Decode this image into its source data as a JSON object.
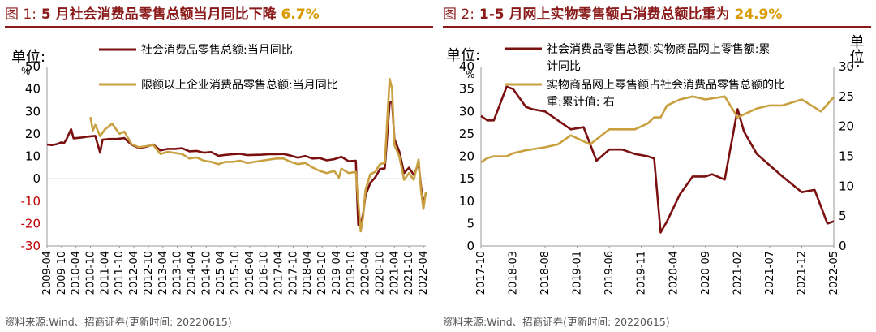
{
  "charts": [
    {
      "fig": "图 1:",
      "headline": "5 月社会消费品零售总额当月同比下降",
      "highlight": "6.7%",
      "unit_label": "单位:",
      "unit_pct": "%",
      "source": "资料来源:Wind、招商证券(更新时间: 20220615)"
    },
    {
      "fig": "图 2:",
      "headline": "1-5 月网上实物零售额占消费总额比重为",
      "highlight": "24.9%",
      "unit_label": "单位:",
      "unit_pct": "%",
      "unit_label_right": "单位:",
      "source": "资料来源:Wind、招商证券(更新时间: 20220615)"
    }
  ],
  "colors": {
    "title": "#8b1a1a",
    "series_dark": "#7b1010",
    "series_gold": "#c8a040",
    "highlight": "#d99a00",
    "negative": "#c00000"
  },
  "chart_data": [
    {
      "type": "line",
      "title": "5 月社会消费品零售总额当月同比下降 6.7%",
      "ylabel": "单位: %",
      "ylim": [
        -30,
        50
      ],
      "yticks": [
        -30,
        -20,
        -10,
        0,
        10,
        20,
        30,
        40,
        50
      ],
      "xticks": [
        "2009-04",
        "2009-10",
        "2010-04",
        "2010-10",
        "2011-04",
        "2011-10",
        "2012-04",
        "2012-10",
        "2013-04",
        "2013-10",
        "2014-04",
        "2014-10",
        "2015-04",
        "2015-10",
        "2016-04",
        "2016-10",
        "2017-04",
        "2017-10",
        "2018-04",
        "2018-10",
        "2019-04",
        "2019-10",
        "2020-04",
        "2020-10",
        "2021-04",
        "2021-10",
        "2022-04"
      ],
      "x_start": "2009-04",
      "x_end": "2022-05",
      "legend": "top",
      "series": [
        {
          "name": "社会消费品零售总额:当月同比",
          "color": "#7b1010",
          "points": [
            [
              "2009-04",
              15.2
            ],
            [
              "2009-06",
              15.0
            ],
            [
              "2009-08",
              15.4
            ],
            [
              "2009-10",
              16.2
            ],
            [
              "2009-11",
              15.8
            ],
            [
              "2009-12",
              17.5
            ],
            [
              "2010-02",
              22.1
            ],
            [
              "2010-03",
              18.0
            ],
            [
              "2010-06",
              18.3
            ],
            [
              "2010-09",
              18.8
            ],
            [
              "2010-12",
              19.1
            ],
            [
              "2011-02",
              11.6
            ],
            [
              "2011-03",
              17.4
            ],
            [
              "2011-06",
              17.7
            ],
            [
              "2011-09",
              17.7
            ],
            [
              "2011-12",
              18.1
            ],
            [
              "2012-03",
              15.2
            ],
            [
              "2012-06",
              13.7
            ],
            [
              "2012-09",
              14.2
            ],
            [
              "2012-12",
              15.2
            ],
            [
              "2013-03",
              12.6
            ],
            [
              "2013-06",
              13.3
            ],
            [
              "2013-09",
              13.3
            ],
            [
              "2013-12",
              13.6
            ],
            [
              "2014-03",
              12.2
            ],
            [
              "2014-06",
              12.4
            ],
            [
              "2014-09",
              11.6
            ],
            [
              "2014-12",
              11.9
            ],
            [
              "2015-03",
              10.2
            ],
            [
              "2015-06",
              10.6
            ],
            [
              "2015-09",
              10.9
            ],
            [
              "2015-12",
              11.1
            ],
            [
              "2016-03",
              10.5
            ],
            [
              "2016-06",
              10.6
            ],
            [
              "2016-09",
              10.7
            ],
            [
              "2016-12",
              10.9
            ],
            [
              "2017-03",
              10.9
            ],
            [
              "2017-06",
              11.0
            ],
            [
              "2017-09",
              10.3
            ],
            [
              "2017-12",
              9.4
            ],
            [
              "2018-03",
              10.1
            ],
            [
              "2018-06",
              9.0
            ],
            [
              "2018-09",
              9.2
            ],
            [
              "2018-12",
              8.2
            ],
            [
              "2019-03",
              8.7
            ],
            [
              "2019-06",
              9.8
            ],
            [
              "2019-09",
              7.8
            ],
            [
              "2019-12",
              8.0
            ],
            [
              "2020-01",
              -20.5
            ],
            [
              "2020-02",
              -20.5
            ],
            [
              "2020-03",
              -15.8
            ],
            [
              "2020-04",
              -7.5
            ],
            [
              "2020-06",
              -1.8
            ],
            [
              "2020-08",
              0.5
            ],
            [
              "2020-10",
              4.3
            ],
            [
              "2020-12",
              4.6
            ],
            [
              "2021-02",
              33.8
            ],
            [
              "2021-03",
              34.2
            ],
            [
              "2021-04",
              17.7
            ],
            [
              "2021-06",
              12.1
            ],
            [
              "2021-08",
              2.5
            ],
            [
              "2021-10",
              4.9
            ],
            [
              "2021-12",
              1.7
            ],
            [
              "2022-02",
              6.7
            ],
            [
              "2022-03",
              -3.5
            ],
            [
              "2022-04",
              -11.1
            ],
            [
              "2022-05",
              -6.7
            ]
          ]
        },
        {
          "name": "限额以上企业消费品零售总额:当月同比",
          "color": "#c8a040",
          "points": [
            [
              "2010-10",
              27.5
            ],
            [
              "2010-11",
              21.5
            ],
            [
              "2010-12",
              24.0
            ],
            [
              "2011-02",
              19.0
            ],
            [
              "2011-04",
              22.0
            ],
            [
              "2011-07",
              24.5
            ],
            [
              "2011-10",
              20.0
            ],
            [
              "2011-12",
              21.0
            ],
            [
              "2012-03",
              15.5
            ],
            [
              "2012-06",
              14.0
            ],
            [
              "2012-09",
              14.5
            ],
            [
              "2012-12",
              15.0
            ],
            [
              "2013-03",
              11.0
            ],
            [
              "2013-06",
              12.0
            ],
            [
              "2013-09",
              11.5
            ],
            [
              "2013-12",
              11.0
            ],
            [
              "2014-03",
              9.0
            ],
            [
              "2014-06",
              9.5
            ],
            [
              "2014-09",
              8.0
            ],
            [
              "2014-12",
              7.5
            ],
            [
              "2015-03",
              6.5
            ],
            [
              "2015-06",
              7.5
            ],
            [
              "2015-09",
              7.5
            ],
            [
              "2015-12",
              8.0
            ],
            [
              "2016-03",
              7.0
            ],
            [
              "2016-06",
              7.5
            ],
            [
              "2016-09",
              8.0
            ],
            [
              "2016-12",
              8.5
            ],
            [
              "2017-03",
              9.0
            ],
            [
              "2017-06",
              9.0
            ],
            [
              "2017-09",
              7.5
            ],
            [
              "2017-12",
              6.5
            ],
            [
              "2018-03",
              7.0
            ],
            [
              "2018-06",
              5.0
            ],
            [
              "2018-09",
              3.5
            ],
            [
              "2018-12",
              2.5
            ],
            [
              "2019-03",
              3.5
            ],
            [
              "2019-05",
              0.5
            ],
            [
              "2019-06",
              4.5
            ],
            [
              "2019-09",
              2.5
            ],
            [
              "2019-12",
              3.0
            ],
            [
              "2020-02",
              -23.5
            ],
            [
              "2020-03",
              -17.0
            ],
            [
              "2020-04",
              -5.0
            ],
            [
              "2020-06",
              2.0
            ],
            [
              "2020-08",
              3.0
            ],
            [
              "2020-10",
              6.5
            ],
            [
              "2020-12",
              7.0
            ],
            [
              "2021-02",
              44.5
            ],
            [
              "2021-03",
              40.0
            ],
            [
              "2021-04",
              15.0
            ],
            [
              "2021-06",
              10.0
            ],
            [
              "2021-08",
              -0.5
            ],
            [
              "2021-10",
              2.5
            ],
            [
              "2021-12",
              -0.5
            ],
            [
              "2022-02",
              8.5
            ],
            [
              "2022-03",
              -5.5
            ],
            [
              "2022-04",
              -13.5
            ],
            [
              "2022-05",
              -6.0
            ]
          ]
        }
      ]
    },
    {
      "type": "line",
      "title": "1-5 月网上实物零售额占消费总额比重为 24.9%",
      "ylabel": "单位: %",
      "ylim": [
        0,
        40
      ],
      "yticks": [
        0,
        5,
        10,
        15,
        20,
        25,
        30,
        35,
        40
      ],
      "ylabel_right": "单位: %",
      "ylim_right": [
        0,
        30
      ],
      "yticks_right": [
        0,
        5,
        10,
        15,
        20,
        25,
        30
      ],
      "xticks": [
        "2017-10",
        "2018-03",
        "2018-08",
        "2019-01",
        "2019-06",
        "2019-11",
        "2020-04",
        "2020-09",
        "2021-02",
        "2021-07",
        "2021-12",
        "2022-05"
      ],
      "x_start": "2017-10",
      "x_end": "2022-05",
      "legend": "top",
      "series": [
        {
          "name": "社会消费品零售总额:实物商品网上零售额:累计同比",
          "axis": "left",
          "color": "#7b1010",
          "points": [
            [
              "2017-10",
              29.0
            ],
            [
              "2017-11",
              28.0
            ],
            [
              "2017-12",
              28.0
            ],
            [
              "2018-02",
              35.5
            ],
            [
              "2018-03",
              35.0
            ],
            [
              "2018-04",
              33.0
            ],
            [
              "2018-05",
              31.0
            ],
            [
              "2018-06",
              30.5
            ],
            [
              "2018-08",
              30.0
            ],
            [
              "2018-10",
              28.0
            ],
            [
              "2018-12",
              26.0
            ],
            [
              "2019-02",
              26.5
            ],
            [
              "2019-04",
              19.0
            ],
            [
              "2019-06",
              21.5
            ],
            [
              "2019-08",
              21.5
            ],
            [
              "2019-10",
              20.5
            ],
            [
              "2019-12",
              20.0
            ],
            [
              "2020-01",
              19.5
            ],
            [
              "2020-02",
              3.0
            ],
            [
              "2020-03",
              5.5
            ],
            [
              "2020-05",
              11.5
            ],
            [
              "2020-07",
              15.5
            ],
            [
              "2020-09",
              15.5
            ],
            [
              "2020-10",
              16.0
            ],
            [
              "2020-12",
              14.8
            ],
            [
              "2021-02",
              30.5
            ],
            [
              "2021-03",
              25.5
            ],
            [
              "2021-05",
              20.5
            ],
            [
              "2021-07",
              18.0
            ],
            [
              "2021-09",
              15.5
            ],
            [
              "2021-12",
              12.0
            ],
            [
              "2022-02",
              12.5
            ],
            [
              "2022-04",
              5.0
            ],
            [
              "2022-05",
              5.5
            ]
          ]
        },
        {
          "name": "实物商品网上零售额占社会消费品零售总额的比重:累计值: 右",
          "axis": "right",
          "color": "#c8a040",
          "points": [
            [
              "2017-10",
              14.0
            ],
            [
              "2017-11",
              14.7
            ],
            [
              "2017-12",
              15.0
            ],
            [
              "2018-02",
              15.0
            ],
            [
              "2018-03",
              15.5
            ],
            [
              "2018-05",
              16.0
            ],
            [
              "2018-08",
              16.5
            ],
            [
              "2018-10",
              17.0
            ],
            [
              "2018-12",
              18.5
            ],
            [
              "2019-02",
              17.5
            ],
            [
              "2019-03",
              17.0
            ],
            [
              "2019-06",
              19.5
            ],
            [
              "2019-10",
              19.5
            ],
            [
              "2019-12",
              20.5
            ],
            [
              "2020-01",
              21.5
            ],
            [
              "2020-02",
              21.5
            ],
            [
              "2020-03",
              23.5
            ],
            [
              "2020-05",
              24.5
            ],
            [
              "2020-07",
              25.0
            ],
            [
              "2020-09",
              24.5
            ],
            [
              "2020-12",
              25.0
            ],
            [
              "2021-02",
              21.5
            ],
            [
              "2021-03",
              22.0
            ],
            [
              "2021-05",
              23.0
            ],
            [
              "2021-07",
              23.5
            ],
            [
              "2021-09",
              23.5
            ],
            [
              "2021-12",
              24.5
            ],
            [
              "2022-03",
              22.5
            ],
            [
              "2022-05",
              24.9
            ]
          ]
        }
      ]
    }
  ]
}
